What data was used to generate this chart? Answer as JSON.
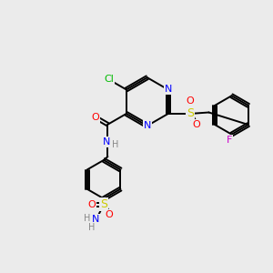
{
  "bg_color": "#ebebeb",
  "bond_color": "#000000",
  "atom_colors": {
    "N": "#0000ff",
    "O": "#ff0000",
    "Cl": "#00bb00",
    "S": "#cccc00",
    "F": "#cc00cc",
    "H": "#888888",
    "C": "#000000"
  },
  "font_size": 8,
  "bond_width": 1.4,
  "dbo": 0.07
}
